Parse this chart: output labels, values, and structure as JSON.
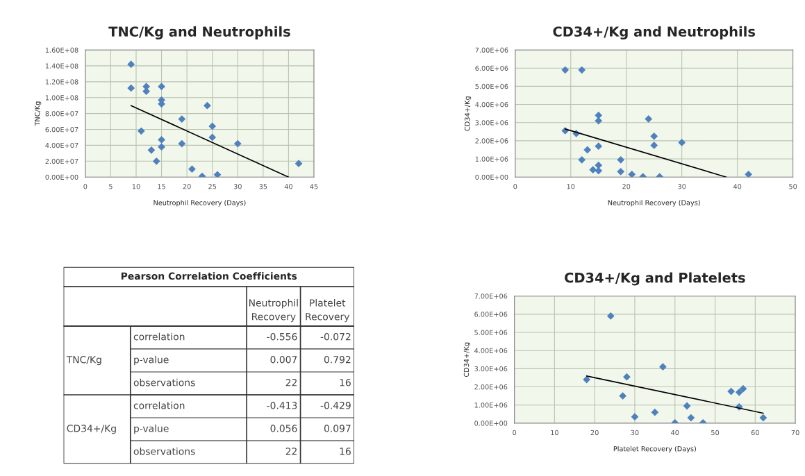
{
  "chart_data": [
    {
      "type": "scatter",
      "title": "TNC/Kg and Neutrophils",
      "xlabel": "Neutrophil Recovery (Days)",
      "ylabel": "TNC/Kg",
      "marker": "diamond",
      "grid": true,
      "xlim": [
        0,
        45
      ],
      "xticks": [
        0,
        5,
        10,
        15,
        20,
        25,
        30,
        35,
        40,
        45
      ],
      "ylim": [
        0,
        160000000
      ],
      "yticks": [
        {
          "value": 0,
          "label": "0.00E+00"
        },
        {
          "value": 20000000,
          "label": "2.00E+07"
        },
        {
          "value": 40000000,
          "label": "4.00E+07"
        },
        {
          "value": 60000000,
          "label": "6.00E+07"
        },
        {
          "value": 80000000,
          "label": "8.00E+07"
        },
        {
          "value": 100000000,
          "label": "1.00E+08"
        },
        {
          "value": 120000000,
          "label": "1.20E+08"
        },
        {
          "value": 140000000,
          "label": "1.40E+08"
        },
        {
          "value": 160000000,
          "label": "1.60E+08"
        }
      ],
      "series": [
        {
          "color": "#4f81bd",
          "x": [
            9,
            9,
            11,
            12,
            12,
            13,
            14,
            15,
            15,
            15,
            15,
            15,
            19,
            19,
            21,
            23,
            24,
            25,
            25,
            26,
            30,
            42
          ],
          "values": [
            142000000,
            112000000,
            58000000,
            114000000,
            108000000,
            34000000,
            20000000,
            114000000,
            97000000,
            92000000,
            47000000,
            38000000,
            73000000,
            42000000,
            10000000,
            1000000,
            90000000,
            64000000,
            50000000,
            3000000,
            42000000,
            17000000
          ]
        },
        {
          "type": "line",
          "color": "#000000",
          "marker": "none",
          "x": [
            9,
            40
          ],
          "values": [
            90000000,
            0
          ]
        }
      ]
    },
    {
      "type": "scatter",
      "title": "CD34+/Kg and Neutrophils",
      "xlabel": "Neutrophil Recovery (Days)",
      "ylabel": "CD34+/Kg",
      "marker": "diamond",
      "grid": true,
      "xlim": [
        0,
        50
      ],
      "xticks": [
        0,
        10,
        20,
        30,
        40,
        50
      ],
      "ylim": [
        0,
        7000000
      ],
      "yticks": [
        {
          "value": 0,
          "label": "0.00E+00"
        },
        {
          "value": 1000000,
          "label": "1.00E+06"
        },
        {
          "value": 2000000,
          "label": "2.00E+06"
        },
        {
          "value": 3000000,
          "label": "3.00E+06"
        },
        {
          "value": 4000000,
          "label": "4.00E+06"
        },
        {
          "value": 5000000,
          "label": "5.00E+06"
        },
        {
          "value": 6000000,
          "label": "6.00E+06"
        },
        {
          "value": 7000000,
          "label": "7.00E+06"
        }
      ],
      "series": [
        {
          "color": "#4f81bd",
          "x": [
            9,
            12,
            9,
            11,
            15,
            15,
            24,
            25,
            25,
            30,
            15,
            13,
            12,
            19,
            15,
            14,
            15,
            19,
            21,
            23,
            26,
            42
          ],
          "values": [
            5900000,
            5900000,
            2550000,
            2400000,
            3400000,
            3100000,
            3200000,
            2250000,
            1750000,
            1900000,
            1700000,
            1500000,
            950000,
            950000,
            650000,
            400000,
            350000,
            300000,
            150000,
            20000,
            20000,
            150000
          ]
        },
        {
          "type": "line",
          "color": "#000000",
          "marker": "none",
          "x": [
            9,
            38
          ],
          "values": [
            2650000,
            0
          ]
        }
      ]
    },
    {
      "type": "other",
      "title": "Pearson Correlation Coefficients",
      "categories": [
        "Neutrophil Recovery",
        "Platelet Recovery"
      ],
      "y_categories": [
        "correlation",
        "p-value",
        "observations",
        "correlation",
        "p-value",
        "observations"
      ],
      "y2_categories": [
        "TNC/Kg",
        "CD34+/Kg"
      ],
      "cell_labels": [
        [
          "-0.556",
          "-0.072"
        ],
        [
          "0.007",
          "0.792"
        ],
        [
          "22",
          "16"
        ],
        [
          "-0.413",
          "-0.429"
        ],
        [
          "0.056",
          "0.097"
        ],
        [
          "22",
          "16"
        ]
      ]
    },
    {
      "type": "scatter",
      "title": "CD34+/Kg and Platelets",
      "xlabel": "Platelet Recovery (Days)",
      "ylabel": "CD34+/Kg",
      "marker": "diamond",
      "grid": true,
      "xlim": [
        0,
        70
      ],
      "xticks": [
        0,
        10,
        20,
        30,
        40,
        50,
        60,
        70
      ],
      "ylim": [
        0,
        7000000
      ],
      "yticks": [
        {
          "value": 0,
          "label": "0.00E+00"
        },
        {
          "value": 1000000,
          "label": "1.00E+06"
        },
        {
          "value": 2000000,
          "label": "2.00E+06"
        },
        {
          "value": 3000000,
          "label": "3.00E+06"
        },
        {
          "value": 4000000,
          "label": "4.00E+06"
        },
        {
          "value": 5000000,
          "label": "5.00E+06"
        },
        {
          "value": 6000000,
          "label": "6.00E+06"
        },
        {
          "value": 7000000,
          "label": "7.00E+06"
        }
      ],
      "series": [
        {
          "color": "#4f81bd",
          "x": [
            18,
            24,
            27,
            28,
            30,
            35,
            37,
            40,
            43,
            44,
            47,
            54,
            56,
            56,
            57,
            62
          ],
          "values": [
            2400000,
            5900000,
            1500000,
            2550000,
            350000,
            600000,
            3100000,
            20000,
            950000,
            300000,
            20000,
            1750000,
            1700000,
            900000,
            1900000,
            300000
          ]
        },
        {
          "type": "line",
          "color": "#000000",
          "marker": "none",
          "x": [
            18,
            62
          ],
          "values": [
            2600000,
            550000
          ]
        }
      ]
    }
  ]
}
